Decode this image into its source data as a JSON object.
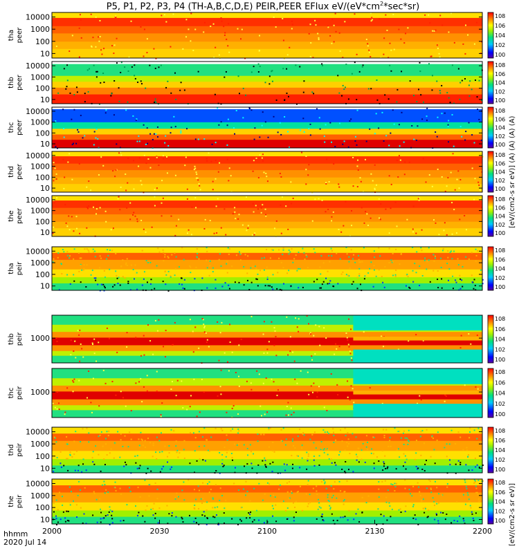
{
  "chart_data": {
    "type": "heatmap",
    "title": "P5, P1, P2, P3, P4 (TH-A,B,C,D,E) PEIR,PEER EFlux eV/(eV*cm^2*sec*sr)",
    "title_parts": {
      "pre": "P5, P1, P2, P3, P4 (TH-A,B,C,D,E) PEIR,PEER EFlux eV/(eV*cm",
      "sup": "2",
      "post": "*sec*sr)"
    },
    "x_ticks": [
      "2000",
      "2030",
      "2100",
      "2130",
      "2200"
    ],
    "x_axis_label": "hhmm",
    "date_label": "2020 Jul 14",
    "colorbar_label": "[eV/(cm2-s sr eV)] (A) (A) (A) (A)",
    "colorbar_label_lower": "[eV/(cm2-s sr eV)]",
    "colorbar_ticks": [
      "10^8",
      "10^6",
      "10^4",
      "10^2",
      "10^0"
    ],
    "panels": [
      {
        "id": "tha-peer",
        "label_top": "tha",
        "label_bottom": "peer",
        "yticks": [
          "10000",
          "1000",
          "100",
          "10"
        ],
        "pattern": "electron-hot"
      },
      {
        "id": "thb-peer",
        "label_top": "thb",
        "label_bottom": "peer",
        "yticks": [
          "10000",
          "1000",
          "100",
          "10"
        ],
        "pattern": "electron-bands"
      },
      {
        "id": "thc-peer",
        "label_top": "thc",
        "label_bottom": "peer",
        "yticks": [
          "10000",
          "1000",
          "100",
          "10"
        ],
        "pattern": "electron-blue"
      },
      {
        "id": "thd-peer",
        "label_top": "thd",
        "label_bottom": "peer",
        "yticks": [
          "10000",
          "1000",
          "100",
          "10"
        ],
        "pattern": "electron-hot"
      },
      {
        "id": "the-peer",
        "label_top": "the",
        "label_bottom": "peer",
        "yticks": [
          "10000",
          "1000",
          "100",
          "10"
        ],
        "pattern": "electron-hot"
      },
      {
        "id": "tha-peir",
        "label_top": "tha",
        "label_bottom": "peir",
        "yticks": [
          "10000",
          "1000",
          "100",
          "10"
        ],
        "pattern": "ion-noise"
      },
      {
        "id": "thb-peir",
        "label_top": "thb",
        "label_bottom": "peir",
        "yticks": [
          "1000"
        ],
        "pattern": "ion-band"
      },
      {
        "id": "thc-peir",
        "label_top": "thc",
        "label_bottom": "peir",
        "yticks": [
          "1000"
        ],
        "pattern": "ion-band"
      },
      {
        "id": "thd-peir",
        "label_top": "thd",
        "label_bottom": "peir",
        "yticks": [
          "10000",
          "1000",
          "100",
          "10"
        ],
        "pattern": "ion-noise"
      },
      {
        "id": "the-peir",
        "label_top": "the",
        "label_bottom": "peir",
        "yticks": [
          "10000",
          "1000",
          "100",
          "10"
        ],
        "pattern": "ion-noise"
      }
    ]
  }
}
